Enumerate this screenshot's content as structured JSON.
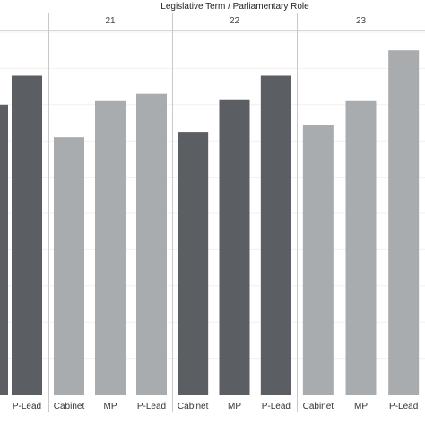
{
  "chart_data": {
    "type": "bar",
    "title": "Legislative Term / Parliamentary Role",
    "xlabel": "",
    "ylabel": "",
    "ylim": [
      0,
      100
    ],
    "grid": true,
    "groups": [
      {
        "name": "",
        "categories": [
          "",
          "P-Lead"
        ],
        "values": [
          80,
          88
        ],
        "colors": [
          "#5b5f64",
          "#5b5f64"
        ]
      },
      {
        "name": "21",
        "categories": [
          "Cabinet",
          "MP",
          "P-Lead"
        ],
        "values": [
          71,
          81,
          83
        ],
        "colors": [
          "#a9acaf",
          "#a9acaf",
          "#a9acaf"
        ]
      },
      {
        "name": "22",
        "categories": [
          "Cabinet",
          "MP",
          "P-Lead"
        ],
        "values": [
          72.5,
          81.5,
          88
        ],
        "colors": [
          "#5b5f64",
          "#5b5f64",
          "#5b5f64"
        ]
      },
      {
        "name": "23",
        "categories": [
          "Cabinet",
          "MP",
          "P-Lead"
        ],
        "values": [
          74.5,
          81,
          95
        ],
        "colors": [
          "#a9acaf",
          "#a9acaf",
          "#a9acaf"
        ]
      }
    ]
  }
}
